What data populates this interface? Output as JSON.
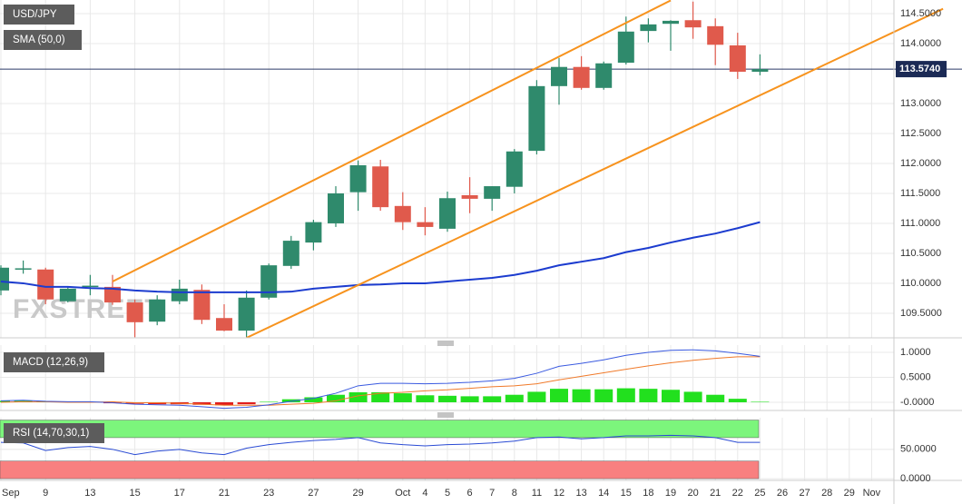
{
  "chart_data": [
    {
      "type": "candlestick",
      "title": "USD/JPY",
      "watermark": "FXSTREET",
      "categories": [
        "Sep",
        null,
        "9",
        null,
        "13",
        null,
        "15",
        null,
        "17",
        null,
        "21",
        null,
        "23",
        null,
        "27",
        null,
        "29",
        null,
        "Oct",
        "4",
        "5",
        "6",
        "7",
        "8",
        "11",
        "12",
        "13",
        "14",
        "15",
        "18",
        "19",
        "20",
        "21",
        "22",
        "25",
        "26",
        "27",
        "28",
        "29",
        "Nov"
      ],
      "open": [
        109.88,
        110.23,
        110.23,
        109.7,
        109.95,
        109.94,
        109.68,
        109.36,
        109.7,
        109.89,
        109.42,
        109.21,
        109.76,
        110.29,
        110.68,
        111.0,
        111.52,
        111.95,
        111.29,
        111.02,
        110.91,
        111.47,
        111.41,
        111.61,
        112.21,
        113.29,
        113.61,
        113.26,
        113.68,
        114.21,
        114.33,
        114.39,
        114.29,
        113.97,
        113.53,
        null,
        null,
        null,
        null,
        null
      ],
      "high": [
        110.3,
        110.38,
        110.26,
        109.95,
        110.14,
        110.14,
        109.73,
        109.8,
        110.06,
        109.98,
        109.65,
        109.88,
        110.33,
        110.79,
        111.06,
        111.62,
        112.05,
        112.06,
        111.52,
        111.27,
        111.53,
        111.77,
        111.62,
        112.24,
        113.39,
        113.76,
        113.79,
        113.7,
        114.45,
        114.42,
        114.39,
        114.7,
        114.42,
        114.18,
        113.82,
        null,
        null,
        null,
        null,
        null
      ],
      "low": [
        109.8,
        110.16,
        109.65,
        109.68,
        109.8,
        109.64,
        109.1,
        109.3,
        109.65,
        109.32,
        109.2,
        109.1,
        109.73,
        110.24,
        110.55,
        110.94,
        111.21,
        111.21,
        110.89,
        110.8,
        110.86,
        111.17,
        111.21,
        111.5,
        112.15,
        112.98,
        113.23,
        113.23,
        113.65,
        114.02,
        113.88,
        114.08,
        113.64,
        113.41,
        113.47,
        null,
        null,
        null,
        null,
        null
      ],
      "close": [
        110.26,
        110.25,
        109.73,
        109.91,
        109.96,
        109.68,
        109.35,
        109.73,
        109.91,
        109.39,
        109.21,
        109.76,
        110.3,
        110.71,
        111.02,
        111.5,
        111.97,
        111.27,
        111.02,
        110.94,
        111.42,
        111.41,
        111.62,
        112.2,
        113.29,
        113.61,
        113.26,
        113.67,
        114.2,
        114.32,
        114.38,
        114.27,
        113.98,
        113.53,
        113.574,
        null,
        null,
        null,
        null,
        null
      ],
      "up_color": "#2f8a6c",
      "down_color": "#e05a4c",
      "series": [
        {
          "name": "SMA (50,0)",
          "color": "#1c3ccf",
          "values": [
            110.03,
            110.0,
            109.94,
            109.94,
            109.92,
            109.91,
            109.88,
            109.86,
            109.85,
            109.85,
            109.85,
            109.85,
            109.85,
            109.86,
            109.91,
            109.94,
            109.97,
            109.98,
            110.0,
            110.0,
            110.03,
            110.06,
            110.09,
            110.14,
            110.21,
            110.3,
            110.36,
            110.42,
            110.52,
            110.59,
            110.68,
            110.76,
            110.83,
            110.92,
            111.02,
            null,
            null,
            null,
            null,
            null
          ]
        }
      ],
      "trendlines": [
        {
          "color": "#f7931e",
          "x": [
            5,
            30
          ],
          "values": [
            110.03,
            114.72
          ]
        },
        {
          "color": "#f7931e",
          "x": [
            11,
            42.2
          ],
          "values": [
            109.09,
            114.58
          ]
        }
      ],
      "last_price": {
        "value": 113.574,
        "label": "113.5740"
      },
      "ylim": [
        109.09,
        114.727
      ],
      "yticks": [
        {
          "value": 109.5,
          "label": "109.5000"
        },
        {
          "value": 110,
          "label": "110.0000"
        },
        {
          "value": 110.5,
          "label": "110.5000"
        },
        {
          "value": 111,
          "label": "111.0000"
        },
        {
          "value": 111.5,
          "label": "111.5000"
        },
        {
          "value": 112,
          "label": "112.0000"
        },
        {
          "value": 112.5,
          "label": "112.5000"
        },
        {
          "value": 113,
          "label": "113.0000"
        },
        {
          "value": 114,
          "label": "114.0000"
        },
        {
          "value": 114.5,
          "label": "114.5000"
        }
      ],
      "grid": true
    },
    {
      "type": "macd",
      "title": "MACD (12,26,9)",
      "macd": {
        "color": "#3a5ae0",
        "values": [
          0.03,
          0.04,
          0.02,
          0.01,
          0.01,
          -0.01,
          -0.04,
          -0.05,
          -0.06,
          -0.09,
          -0.12,
          -0.1,
          -0.05,
          0.02,
          0.08,
          0.18,
          0.33,
          0.38,
          0.38,
          0.37,
          0.38,
          0.4,
          0.43,
          0.48,
          0.58,
          0.72,
          0.78,
          0.85,
          0.94,
          1.0,
          1.04,
          1.05,
          1.03,
          0.98,
          0.92
        ]
      },
      "signal": {
        "color": "#f07a2a",
        "values": [
          0,
          0.01,
          0.01,
          0,
          0,
          0.01,
          -0.01,
          -0.01,
          -0.02,
          -0.04,
          -0.06,
          -0.06,
          -0.06,
          -0.04,
          -0.02,
          0.03,
          0.13,
          0.18,
          0.2,
          0.23,
          0.25,
          0.28,
          0.31,
          0.33,
          0.37,
          0.45,
          0.52,
          0.59,
          0.66,
          0.73,
          0.79,
          0.84,
          0.88,
          0.91,
          0.91
        ]
      },
      "histogram": {
        "up_color": "#22e01e",
        "down_color": "#e01e1e",
        "values": [
          0.03,
          0.03,
          0.01,
          0.01,
          0.01,
          -0.02,
          -0.03,
          -0.04,
          -0.04,
          -0.05,
          -0.06,
          -0.04,
          0.01,
          0.06,
          0.1,
          0.15,
          0.2,
          0.2,
          0.18,
          0.14,
          0.13,
          0.12,
          0.12,
          0.15,
          0.21,
          0.27,
          0.26,
          0.26,
          0.28,
          0.27,
          0.25,
          0.21,
          0.15,
          0.07,
          0.01
        ]
      },
      "ylim": [
        -0.164,
        1.145
      ],
      "yticks": [
        {
          "value": 0,
          "label": "-0.0000"
        },
        {
          "value": 0.5,
          "label": "0.5000"
        },
        {
          "value": 1,
          "label": "1.0000"
        }
      ]
    },
    {
      "type": "rsi",
      "title": "RSI (14,70,30,1)",
      "rsi": {
        "color": "#2a4bd4",
        "values": [
          62,
          61,
          48,
          53,
          55,
          50,
          41,
          47,
          50,
          44,
          41,
          52,
          58,
          62,
          65,
          67,
          70,
          61,
          58,
          56,
          58,
          59,
          61,
          64,
          70,
          71,
          68,
          70,
          73,
          73,
          74,
          73,
          70,
          62,
          62
        ]
      },
      "bands": [
        {
          "from": 70,
          "to": 100,
          "color": "#7cf57c"
        },
        {
          "from": 0,
          "to": 30,
          "color": "#f88080"
        }
      ],
      "ylim": [
        -3,
        104
      ],
      "yticks": [
        {
          "value": 0,
          "label": "0.0000"
        },
        {
          "value": 50,
          "label": "50.0000"
        }
      ]
    }
  ]
}
